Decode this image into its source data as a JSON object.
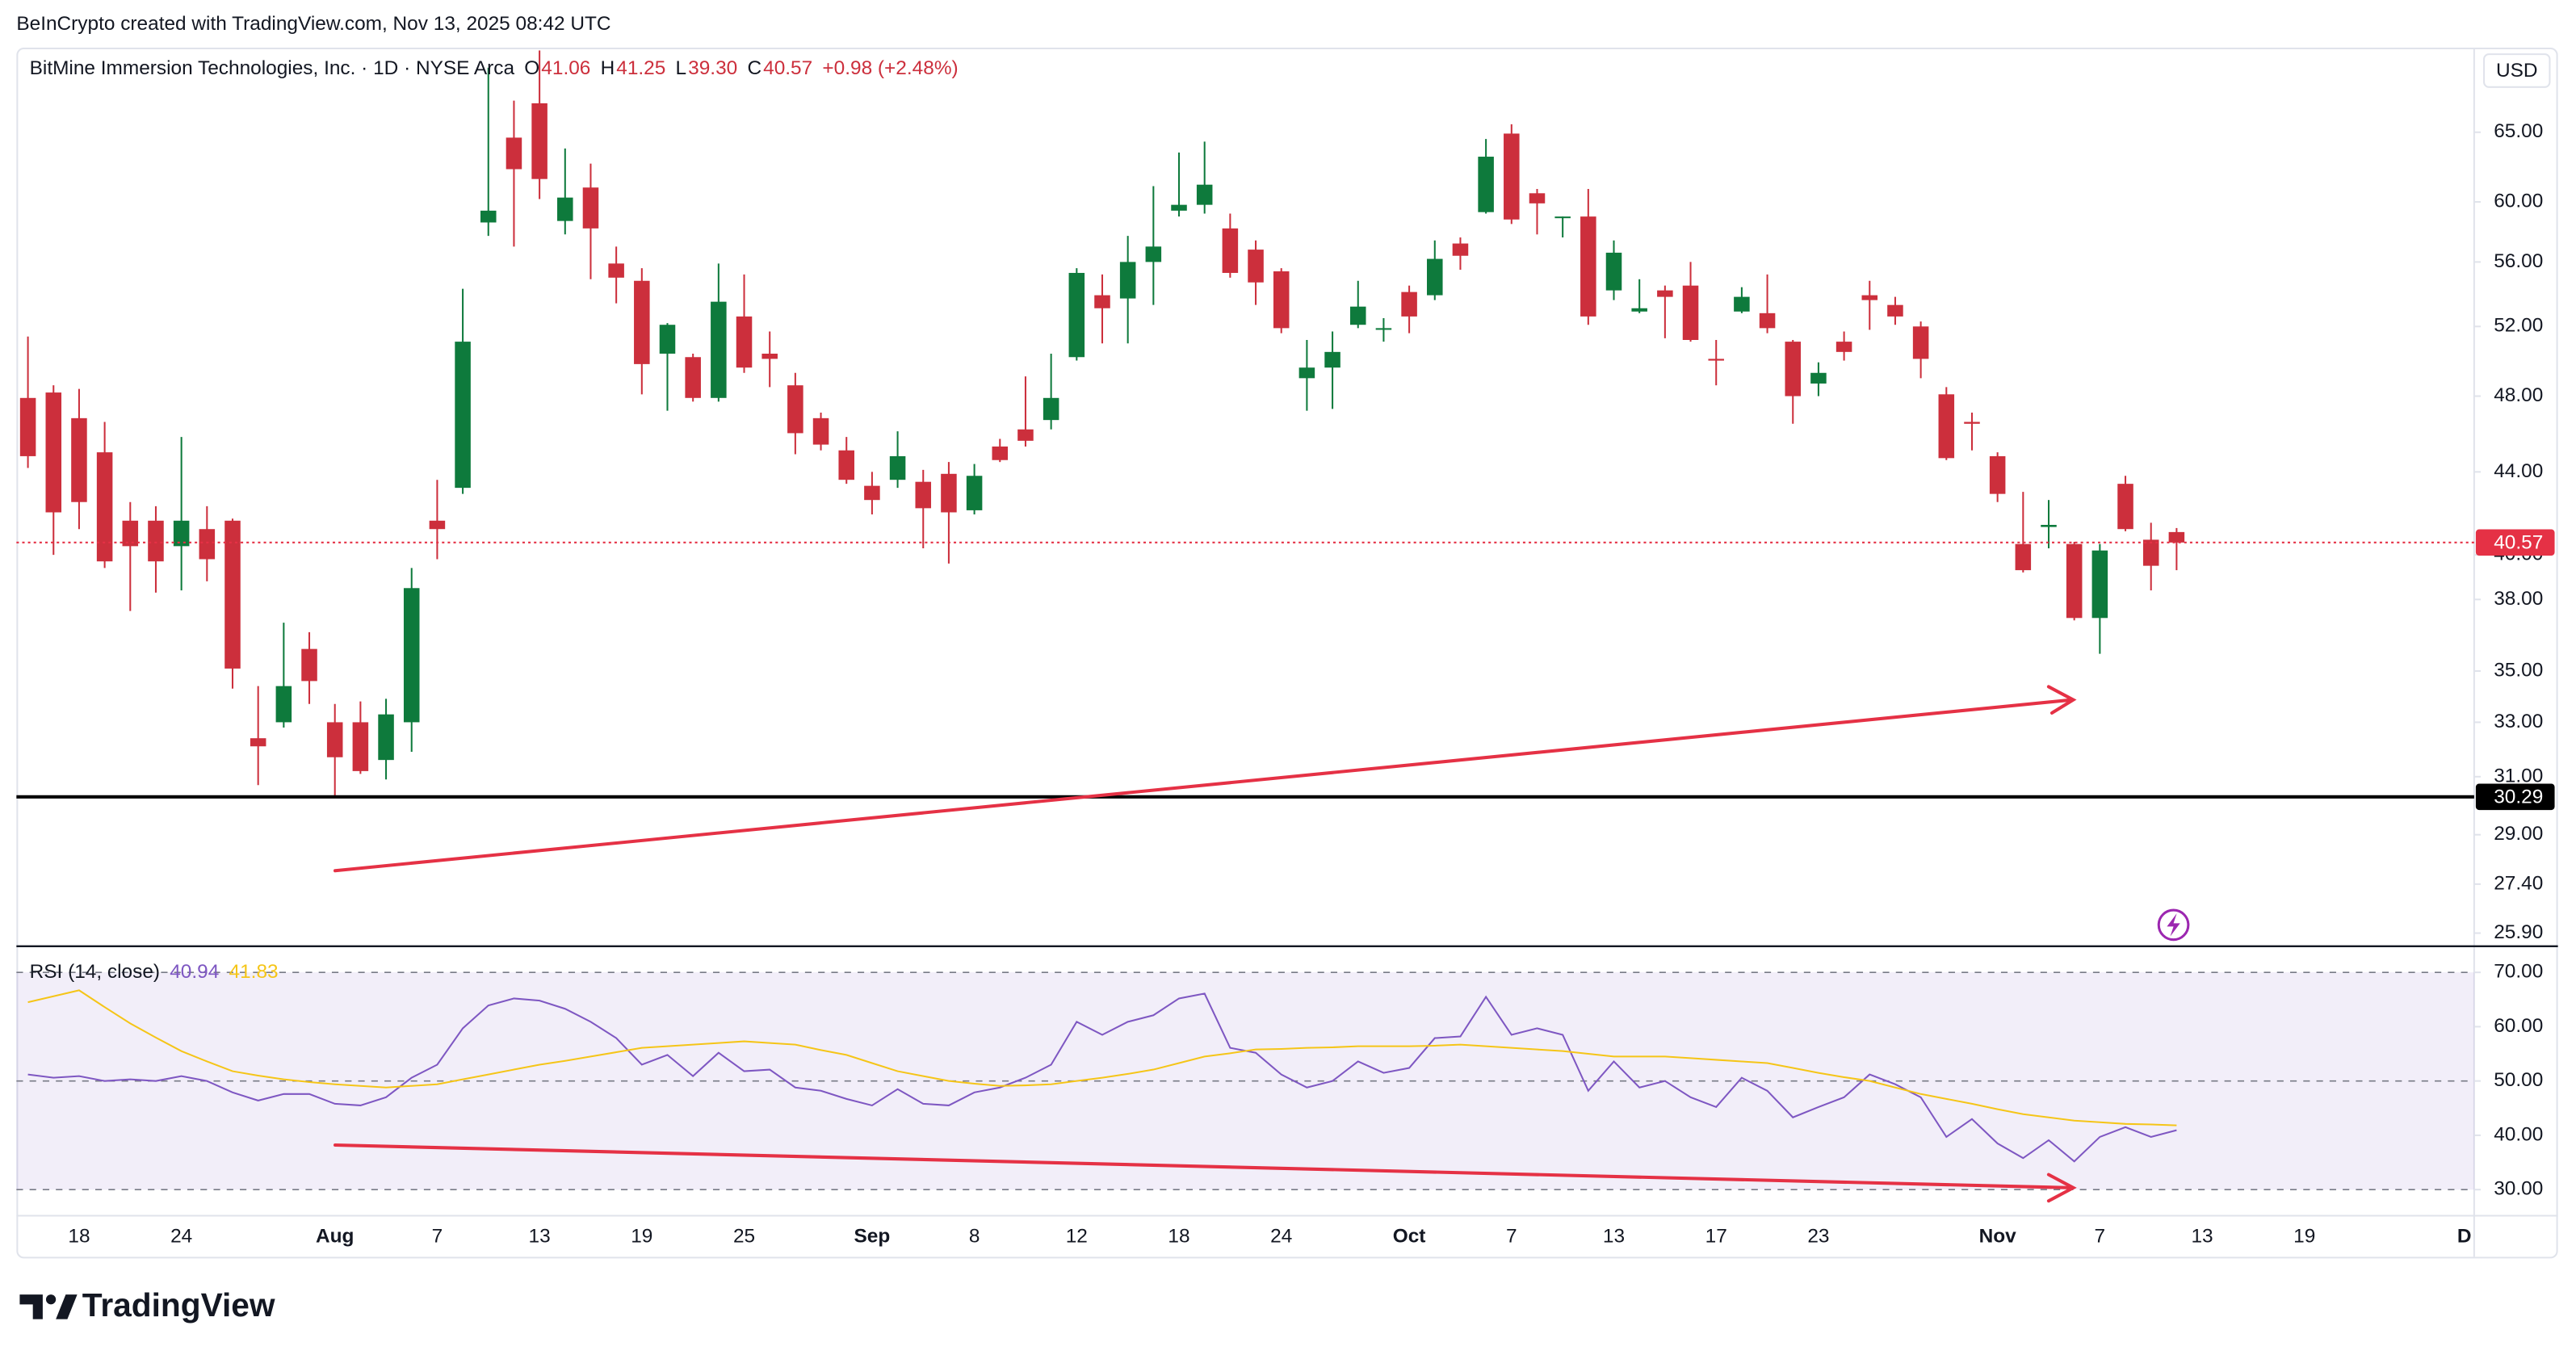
{
  "header": {
    "watermark": "BeInCrypto created with TradingView.com, Nov 13, 2025 08:42 UTC"
  },
  "chart_data": [
    {
      "type": "candlestick",
      "title": "BitMine Immersion Technologies, Inc. · 1D · NYSE Arca",
      "ohlc_legend": [
        {
          "label": "O",
          "value": "41.06"
        },
        {
          "label": "H",
          "value": "41.25"
        },
        {
          "label": "L",
          "value": "39.30"
        },
        {
          "label": "C",
          "value": "40.57"
        }
      ],
      "change": "+0.98 (+2.48%)",
      "currency": "USD",
      "x": [
        "2025-07-16",
        "2025-07-17",
        "2025-07-18",
        "2025-07-21",
        "2025-07-22",
        "2025-07-23",
        "2025-07-24",
        "2025-07-25",
        "2025-07-28",
        "2025-07-29",
        "2025-07-30",
        "2025-07-31",
        "2025-08-01",
        "2025-08-04",
        "2025-08-05",
        "2025-08-06",
        "2025-08-07",
        "2025-08-08",
        "2025-08-11",
        "2025-08-12",
        "2025-08-13",
        "2025-08-14",
        "2025-08-15",
        "2025-08-18",
        "2025-08-19",
        "2025-08-20",
        "2025-08-21",
        "2025-08-22",
        "2025-08-25",
        "2025-08-26",
        "2025-08-27",
        "2025-08-28",
        "2025-08-29",
        "2025-09-02",
        "2025-09-03",
        "2025-09-04",
        "2025-09-05",
        "2025-09-08",
        "2025-09-09",
        "2025-09-10",
        "2025-09-11",
        "2025-09-12",
        "2025-09-15",
        "2025-09-16",
        "2025-09-17",
        "2025-09-18",
        "2025-09-19",
        "2025-09-22",
        "2025-09-23",
        "2025-09-24",
        "2025-09-25",
        "2025-09-26",
        "2025-09-29",
        "2025-09-30",
        "2025-10-01",
        "2025-10-02",
        "2025-10-03",
        "2025-10-06",
        "2025-10-07",
        "2025-10-08",
        "2025-10-09",
        "2025-10-10",
        "2025-10-13",
        "2025-10-14",
        "2025-10-15",
        "2025-10-16",
        "2025-10-17",
        "2025-10-20",
        "2025-10-21",
        "2025-10-22",
        "2025-10-23",
        "2025-10-24",
        "2025-10-27",
        "2025-10-28",
        "2025-10-29",
        "2025-10-30",
        "2025-10-31",
        "2025-11-03",
        "2025-11-04",
        "2025-11-05",
        "2025-11-06",
        "2025-11-07",
        "2025-11-10",
        "2025-11-11",
        "2025-11-12"
      ],
      "open": [
        47.9,
        48.2,
        46.8,
        45.0,
        41.6,
        41.6,
        40.4,
        41.2,
        41.6,
        32.4,
        33.0,
        35.9,
        33.0,
        33.0,
        31.6,
        33.0,
        41.6,
        43.2,
        58.6,
        64.6,
        67.2,
        58.7,
        61.0,
        55.9,
        54.8,
        50.4,
        50.2,
        47.9,
        52.6,
        50.4,
        48.6,
        46.8,
        45.1,
        43.3,
        43.6,
        43.5,
        43.9,
        42.1,
        45.3,
        46.2,
        46.7,
        50.2,
        53.9,
        53.7,
        56.0,
        59.4,
        59.8,
        58.2,
        56.8,
        55.4,
        49.0,
        49.6,
        52.1,
        51.8,
        54.1,
        53.9,
        57.2,
        59.3,
        64.9,
        60.6,
        58.9,
        59.0,
        54.2,
        52.9,
        54.2,
        54.5,
        50.1,
        52.9,
        52.8,
        51.1,
        48.7,
        51.1,
        53.9,
        53.3,
        52.0,
        48.1,
        46.6,
        44.8,
        40.5,
        41.3,
        40.5,
        37.2,
        43.4,
        40.7,
        41.06
      ],
      "high": [
        51.4,
        48.6,
        48.4,
        46.6,
        42.5,
        42.3,
        45.8,
        42.3,
        41.7,
        34.4,
        37.0,
        36.6,
        33.7,
        33.8,
        33.9,
        39.4,
        43.6,
        54.3,
        70.0,
        67.4,
        71.4,
        63.8,
        62.7,
        57.0,
        55.6,
        52.2,
        50.4,
        55.9,
        55.2,
        51.7,
        49.3,
        47.1,
        45.8,
        44.0,
        46.1,
        44.1,
        44.5,
        44.4,
        45.7,
        49.1,
        50.4,
        55.6,
        55.2,
        57.7,
        61.1,
        63.5,
        64.3,
        59.2,
        57.4,
        55.6,
        51.2,
        51.7,
        54.8,
        52.5,
        54.5,
        57.4,
        57.6,
        64.5,
        65.6,
        60.9,
        59.0,
        60.9,
        57.4,
        54.9,
        54.5,
        56.0,
        51.2,
        54.4,
        55.2,
        51.2,
        49.9,
        51.7,
        54.8,
        53.8,
        52.3,
        48.5,
        47.1,
        45.0,
        43.0,
        42.6,
        40.6,
        40.5,
        43.8,
        41.5,
        41.25
      ],
      "low": [
        44.2,
        40.0,
        41.2,
        39.4,
        37.5,
        38.3,
        38.4,
        38.8,
        34.3,
        30.7,
        32.8,
        33.7,
        30.3,
        31.1,
        30.9,
        31.9,
        39.8,
        42.9,
        57.7,
        57.0,
        60.2,
        57.8,
        54.9,
        53.4,
        48.1,
        47.2,
        47.7,
        47.7,
        49.3,
        48.5,
        44.9,
        45.1,
        43.4,
        41.9,
        43.2,
        40.3,
        39.6,
        41.9,
        44.5,
        45.3,
        46.2,
        50.0,
        51.0,
        51.0,
        53.3,
        59.0,
        59.2,
        55.0,
        53.3,
        51.6,
        47.2,
        47.3,
        51.9,
        51.1,
        51.6,
        53.6,
        55.5,
        59.2,
        58.5,
        57.8,
        57.6,
        52.1,
        53.6,
        52.8,
        51.3,
        51.1,
        48.6,
        52.8,
        51.6,
        46.5,
        48.0,
        50.0,
        51.8,
        52.1,
        49.0,
        44.6,
        45.1,
        42.5,
        39.2,
        40.3,
        37.1,
        35.7,
        41.1,
        38.4,
        39.3
      ],
      "close": [
        44.8,
        42.0,
        42.5,
        39.7,
        40.4,
        39.7,
        41.6,
        39.8,
        35.1,
        32.1,
        34.4,
        34.6,
        31.7,
        31.2,
        33.3,
        38.5,
        41.2,
        51.1,
        59.4,
        62.3,
        61.6,
        60.3,
        58.2,
        55.0,
        49.8,
        52.1,
        47.9,
        53.5,
        49.6,
        50.1,
        46.0,
        45.4,
        43.6,
        42.6,
        44.8,
        42.2,
        42.0,
        43.8,
        44.6,
        45.6,
        47.9,
        55.3,
        53.1,
        56.0,
        57.0,
        59.8,
        61.2,
        55.3,
        54.7,
        51.9,
        49.6,
        50.5,
        53.2,
        51.9,
        52.6,
        56.2,
        56.4,
        63.2,
        58.8,
        59.9,
        59.0,
        52.6,
        56.6,
        53.1,
        53.8,
        51.2,
        50.0,
        53.8,
        51.9,
        48.0,
        49.3,
        50.5,
        53.6,
        52.6,
        50.1,
        44.7,
        46.5,
        42.9,
        39.3,
        41.4,
        37.2,
        40.2,
        41.2,
        39.5,
        40.57
      ],
      "up_color": "#0e7a3c",
      "down_color": "#cc2f3c",
      "log_scale": true,
      "grid": false,
      "ylim": [
        25.56,
        71.5
      ],
      "yticks": [
        {
          "value": 65,
          "label": "65.00"
        },
        {
          "value": 60,
          "label": "60.00"
        },
        {
          "value": 56,
          "label": "56.00"
        },
        {
          "value": 52,
          "label": "52.00"
        },
        {
          "value": 48,
          "label": "48.00"
        },
        {
          "value": 44,
          "label": "44.00"
        },
        {
          "value": 40,
          "label": "40.00"
        },
        {
          "value": 38,
          "label": "38.00"
        },
        {
          "value": 35,
          "label": "35.00"
        },
        {
          "value": 33,
          "label": "33.00"
        },
        {
          "value": 31,
          "label": "31.00"
        },
        {
          "value": 29,
          "label": "29.00"
        },
        {
          "value": 27.4,
          "label": "27.40"
        },
        {
          "value": 25.9,
          "label": "25.90"
        }
      ],
      "xticks": [
        {
          "value": "2025-07-18",
          "label": "18"
        },
        {
          "value": "2025-07-24",
          "label": "24"
        },
        {
          "value": "2025-08-01",
          "label": "Aug"
        },
        {
          "value": "2025-08-07",
          "label": "7"
        },
        {
          "value": "2025-08-13",
          "label": "13"
        },
        {
          "value": "2025-08-19",
          "label": "19"
        },
        {
          "value": "2025-08-25",
          "label": "25"
        },
        {
          "value": "2025-09-02",
          "label": "Sep"
        },
        {
          "value": "2025-09-08",
          "label": "8"
        },
        {
          "value": "2025-09-12",
          "label": "12"
        },
        {
          "value": "2025-09-18",
          "label": "18"
        },
        {
          "value": "2025-09-24",
          "label": "24"
        },
        {
          "value": "2025-10-01",
          "label": "Oct"
        },
        {
          "value": "2025-10-07",
          "label": "7"
        },
        {
          "value": "2025-10-13",
          "label": "13"
        },
        {
          "value": "2025-10-17",
          "label": "17"
        },
        {
          "value": "2025-10-23",
          "label": "23"
        },
        {
          "value": "2025-11-03",
          "label": "Nov"
        },
        {
          "value": "2025-11-07",
          "label": "7"
        },
        {
          "value": "2025-11-13",
          "label": "13"
        },
        {
          "value": "2025-11-19",
          "label": "19"
        },
        {
          "value": "2025-12-01",
          "label": "D"
        }
      ],
      "price_line_color": "#e53145",
      "support_level": 30.29,
      "support_color": "#000000"
    },
    {
      "type": "line",
      "title": "RSI (14, close)",
      "series": [
        {
          "color": "#7e57c2",
          "values": [
            51.2,
            50.6,
            50.9,
            50.0,
            50.3,
            50.0,
            50.9,
            50.0,
            47.9,
            46.4,
            47.6,
            47.6,
            45.8,
            45.5,
            47.0,
            50.6,
            53.0,
            59.7,
            63.9,
            65.2,
            64.8,
            63.3,
            60.9,
            57.9,
            53.0,
            54.8,
            50.9,
            55.2,
            51.8,
            52.1,
            48.8,
            48.2,
            46.7,
            45.5,
            48.5,
            45.8,
            45.5,
            47.9,
            48.8,
            50.6,
            53.0,
            60.9,
            58.5,
            60.9,
            62.1,
            65.2,
            66.1,
            56.1,
            55.2,
            51.2,
            48.8,
            50.0,
            53.6,
            51.5,
            52.4,
            57.9,
            58.2,
            65.5,
            58.5,
            59.7,
            58.5,
            48.2,
            53.6,
            48.8,
            50.0,
            47.0,
            45.2,
            50.6,
            48.2,
            43.3,
            45.2,
            47.0,
            51.2,
            49.4,
            47.0,
            39.7,
            43.0,
            38.5,
            35.8,
            39.1,
            35.2,
            39.7,
            41.5,
            39.7,
            40.94
          ]
        },
        {
          "color": "#f5c518",
          "values": [
            64.5,
            65.6,
            66.7,
            63.6,
            60.6,
            58.0,
            55.5,
            53.6,
            51.8,
            51.0,
            50.3,
            49.8,
            49.4,
            49.1,
            48.8,
            49.1,
            49.4,
            50.3,
            51.2,
            52.1,
            53.0,
            53.7,
            54.5,
            55.3,
            56.1,
            56.4,
            56.7,
            57.0,
            57.3,
            57.0,
            56.7,
            55.7,
            54.8,
            53.3,
            51.8,
            50.9,
            50.0,
            49.5,
            49.1,
            49.2,
            49.4,
            50.0,
            50.6,
            51.3,
            52.1,
            53.3,
            54.5,
            55.1,
            55.8,
            55.9,
            56.1,
            56.2,
            56.4,
            56.4,
            56.4,
            56.5,
            56.7,
            56.4,
            56.1,
            55.8,
            55.5,
            55.0,
            54.5,
            54.5,
            54.5,
            54.2,
            53.9,
            53.6,
            53.3,
            52.4,
            51.5,
            50.7,
            50.0,
            48.8,
            47.6,
            46.7,
            45.8,
            44.8,
            43.9,
            43.3,
            42.7,
            42.4,
            42.1,
            42.0,
            41.83
          ]
        }
      ],
      "ylim": [
        25.2,
        74.2
      ],
      "yticks": [
        {
          "value": 70,
          "label": "70.00"
        },
        {
          "value": 60,
          "label": "60.00"
        },
        {
          "value": 50,
          "label": "50.00"
        },
        {
          "value": 40,
          "label": "40.00"
        },
        {
          "value": 30,
          "label": "30.00"
        }
      ],
      "bands": {
        "upper": 70,
        "middle": 50,
        "lower": 30,
        "fill": "#7e57c2"
      }
    }
  ],
  "footer": {
    "brand": "TradingView"
  }
}
